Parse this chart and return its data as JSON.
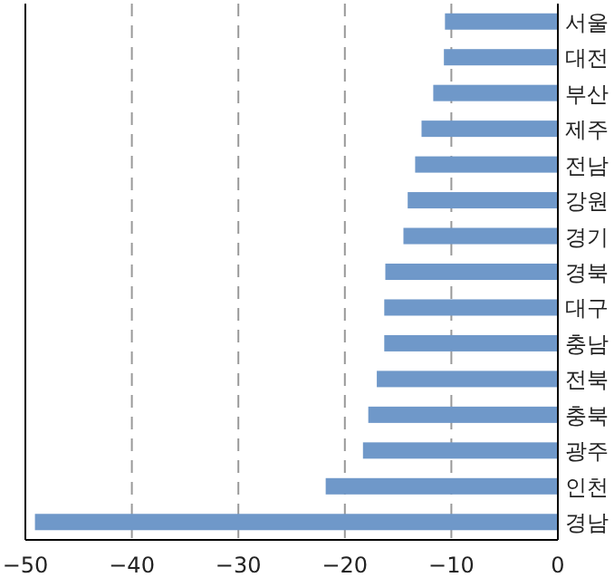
{
  "chart_data": {
    "type": "bar",
    "orientation": "horizontal",
    "categories": [
      "서울",
      "대전",
      "부산",
      "제주",
      "전남",
      "강원",
      "경기",
      "경북",
      "대구",
      "충남",
      "전북",
      "충북",
      "광주",
      "인천",
      "경남"
    ],
    "values": [
      -10.6,
      -10.7,
      -11.7,
      -12.8,
      -13.4,
      -14.1,
      -14.5,
      -16.2,
      -16.3,
      -16.3,
      -17.0,
      -17.8,
      -18.3,
      -21.8,
      -49.1
    ],
    "color": "#6f98c9",
    "xlim": [
      -50,
      0
    ],
    "xticks": [
      -50,
      -40,
      -30,
      -20,
      -10,
      0
    ],
    "grid": "x"
  }
}
